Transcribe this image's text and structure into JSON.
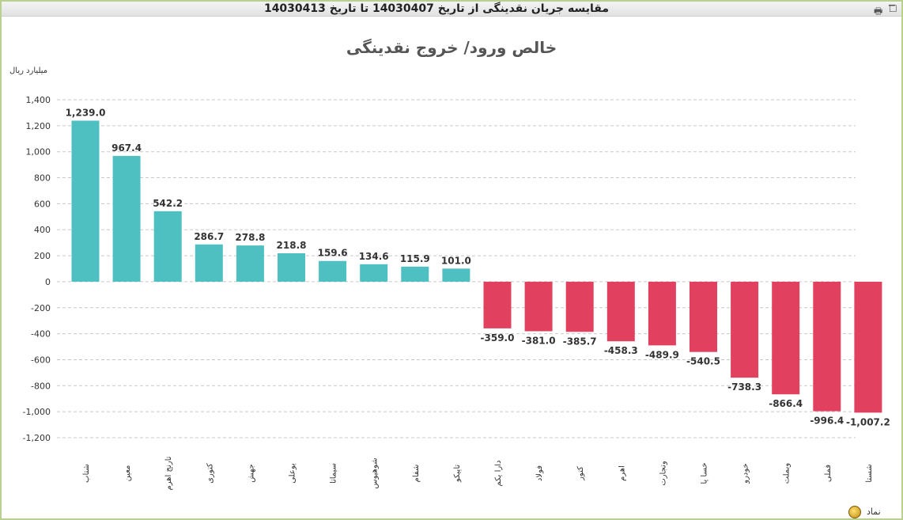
{
  "window": {
    "title": "مقایسه جریان نقدینگی از تاریخ 14030407 تا تاریخ 14030413",
    "print_icon": "printer-icon",
    "maximize_icon": "maximize-icon",
    "footer_icon": "refresh-icon",
    "footer_label": "نماد"
  },
  "colors": {
    "positive": "#4fc0c2",
    "negative": "#e2405f",
    "grid": "#c8c8c8"
  },
  "chart_data": {
    "type": "bar",
    "title": "خالص ورود/ خروج نقدینگی",
    "ylabel": "میلیارد ریال",
    "xlabel": "",
    "ylim": [
      -1200,
      1400
    ],
    "yticks": [
      1400,
      1200,
      1000,
      800,
      600,
      400,
      200,
      0,
      -200,
      -400,
      -600,
      -800,
      -1000,
      -1200
    ],
    "ytick_labels": [
      "1,400",
      "1,200",
      "1,000",
      "800",
      "600",
      "400",
      "200",
      "0",
      "-200",
      "-400",
      "-600",
      "-800",
      "-1,000",
      "-1,200"
    ],
    "grid": true,
    "categories": [
      "شتاب",
      "معین",
      "تارنج اهرم",
      "کتوری",
      "جهش",
      "یوعلی",
      "سیماتا",
      "شوهیوس",
      "شفام",
      "تاپیکو",
      "دارا یکم",
      "فولاد",
      "کتور",
      "اهرم",
      "وتجارت",
      "خسا پا",
      "خودرو",
      "وبملت",
      "فملی",
      "شستا"
    ],
    "values": [
      1239.0,
      967.4,
      542.2,
      286.7,
      278.8,
      218.8,
      159.6,
      134.6,
      115.9,
      101.0,
      -359.0,
      -381.0,
      -385.7,
      -458.3,
      -489.9,
      -540.5,
      -738.3,
      -866.4,
      -996.4,
      -1007.2
    ],
    "value_labels": [
      "1,239.0",
      "967.4",
      "542.2",
      "286.7",
      "278.8",
      "218.8",
      "159.6",
      "134.6",
      "115.9",
      "101.0",
      "-359.0",
      "-381.0",
      "-385.7",
      "-458.3",
      "-489.9",
      "-540.5",
      "-738.3",
      "-866.4",
      "-996.4",
      "-1,007.2"
    ]
  }
}
